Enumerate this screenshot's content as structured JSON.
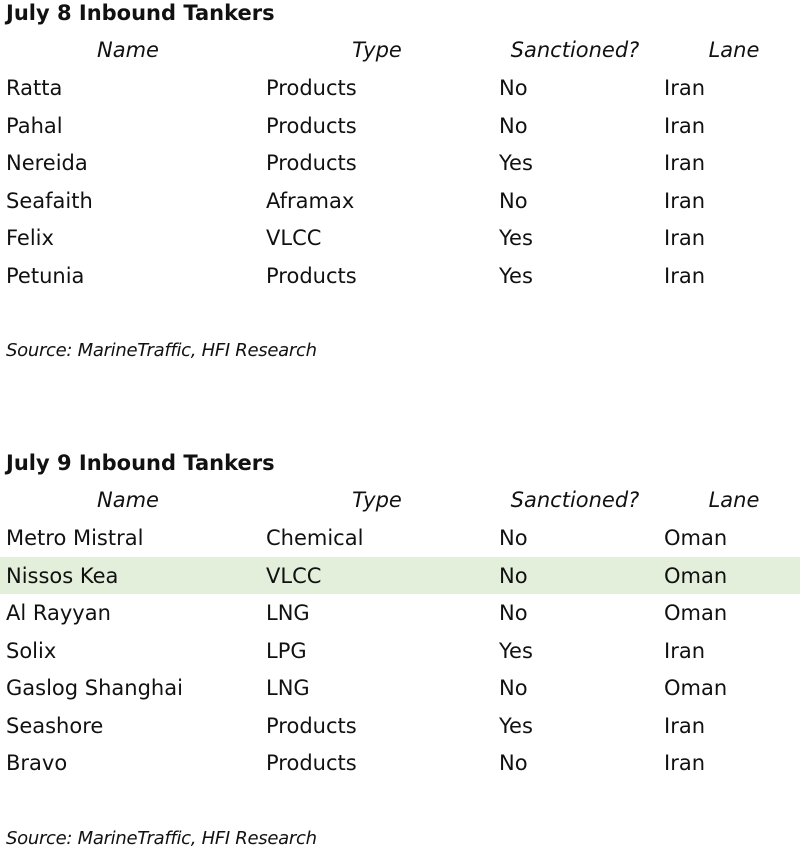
{
  "tables": [
    {
      "title": "July 8 Inbound Tankers",
      "headers": [
        "Name",
        "Type",
        "Sanctioned?",
        "Lane"
      ],
      "rows": [
        [
          "Ratta",
          "Products",
          "No",
          "Iran"
        ],
        [
          "Pahal",
          "Products",
          "No",
          "Iran"
        ],
        [
          "Nereida",
          "Products",
          "Yes",
          "Iran"
        ],
        [
          "Seafaith",
          "Aframax",
          "No",
          "Iran"
        ],
        [
          "Felix",
          "VLCC",
          "Yes",
          "Iran"
        ],
        [
          "Petunia",
          "Products",
          "Yes",
          "Iran"
        ]
      ],
      "source": "Source: MarineTraffic, HFI Research"
    },
    {
      "title": "July 9 Inbound Tankers",
      "headers": [
        "Name",
        "Type",
        "Sanctioned?",
        "Lane"
      ],
      "rows": [
        [
          "Metro Mistral",
          "Chemical",
          "No",
          "Oman"
        ],
        [
          "Nissos Kea",
          "VLCC",
          "No",
          "Oman"
        ],
        [
          "Al Rayyan",
          "LNG",
          "No",
          "Oman"
        ],
        [
          "Solix",
          "LPG",
          "Yes",
          "Iran"
        ],
        [
          "Gaslog Shanghai",
          "LNG",
          "No",
          "Oman"
        ],
        [
          "Seashore",
          "Products",
          "Yes",
          "Iran"
        ],
        [
          "Bravo",
          "Products",
          "No",
          "Iran"
        ]
      ],
      "source": "Source: MarineTraffic, HFI Research"
    }
  ]
}
